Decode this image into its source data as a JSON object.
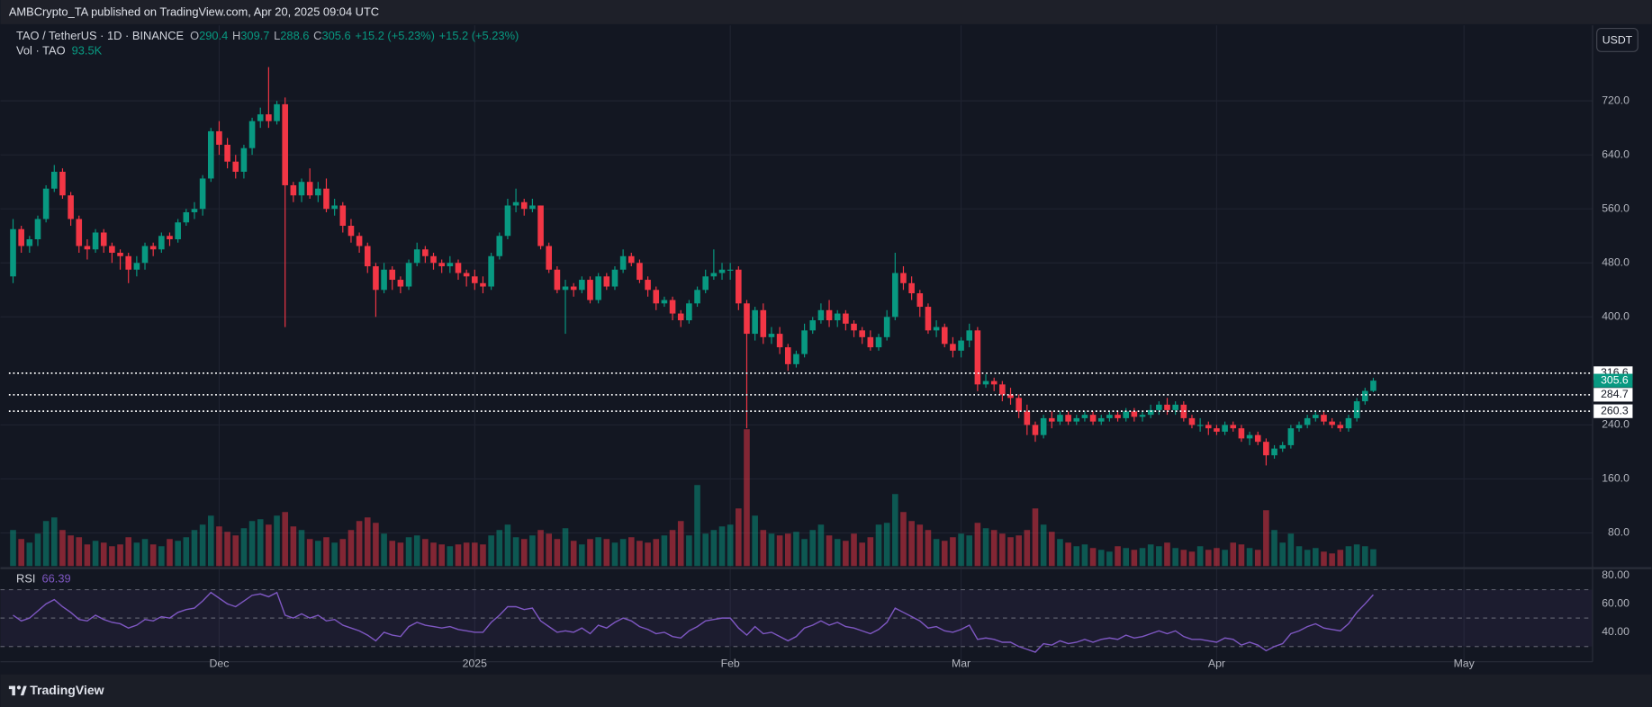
{
  "page": {
    "publisher": "AMBCrypto_TA published on TradingView.com, Apr 20, 2025 09:04 UTC",
    "brand": "TradingView"
  },
  "chart_data": {
    "type": "candlestick",
    "title": "TAO / TetherUS · 1D · BINANCE",
    "ohlc_keys": [
      "O",
      "H",
      "L",
      "C"
    ],
    "change_label": "+15.2 (+5.23%)",
    "currency": "USDT",
    "colors": {
      "up": "#089981",
      "down": "#f23645",
      "rsi": "#7e57c2"
    },
    "grid": true,
    "open": [
      460,
      530,
      505,
      515,
      545,
      590,
      615,
      580,
      545,
      505,
      500,
      525,
      505,
      495,
      490,
      470,
      480,
      505,
      500,
      520,
      515,
      540,
      555,
      560,
      605,
      675,
      655,
      630,
      615,
      650,
      690,
      700,
      690,
      715,
      595,
      580,
      600,
      580,
      590,
      560,
      565,
      535,
      520,
      505,
      475,
      440,
      470,
      455,
      445,
      480,
      500,
      490,
      480,
      475,
      480,
      465,
      460,
      450,
      445,
      490,
      520,
      565,
      570,
      560,
      565,
      505,
      470,
      440,
      445,
      440,
      455,
      425,
      460,
      445,
      470,
      490,
      480,
      455,
      440,
      420,
      425,
      405,
      395,
      420,
      440,
      460,
      465,
      470,
      470,
      420,
      375,
      410,
      370,
      375,
      355,
      330,
      345,
      380,
      395,
      410,
      395,
      405,
      390,
      380,
      370,
      355,
      370,
      400,
      465,
      450,
      435,
      415,
      380,
      385,
      360,
      350,
      365,
      380,
      300,
      305,
      300,
      285,
      280,
      260,
      240,
      225,
      250,
      245,
      255,
      245,
      250,
      255,
      245,
      250,
      255,
      250,
      260,
      252,
      255,
      262,
      270,
      262,
      270,
      250,
      240,
      240,
      235,
      230,
      240,
      235,
      220,
      225,
      215,
      195,
      205,
      210,
      235,
      240,
      250,
      255,
      245,
      240,
      235,
      250,
      275,
      290.4
    ],
    "high": [
      545,
      535,
      520,
      550,
      595,
      625,
      620,
      585,
      550,
      515,
      530,
      530,
      510,
      500,
      495,
      490,
      510,
      510,
      525,
      525,
      545,
      560,
      570,
      610,
      680,
      690,
      665,
      640,
      655,
      695,
      710,
      770,
      720,
      725,
      600,
      605,
      620,
      600,
      605,
      575,
      570,
      545,
      525,
      510,
      480,
      480,
      475,
      460,
      485,
      510,
      505,
      495,
      485,
      490,
      485,
      470,
      470,
      460,
      495,
      525,
      575,
      590,
      575,
      575,
      565,
      510,
      475,
      455,
      450,
      460,
      460,
      465,
      465,
      475,
      500,
      495,
      485,
      460,
      445,
      430,
      430,
      410,
      425,
      445,
      470,
      500,
      480,
      480,
      475,
      425,
      415,
      420,
      385,
      385,
      360,
      350,
      390,
      400,
      420,
      425,
      410,
      410,
      395,
      385,
      380,
      375,
      410,
      495,
      475,
      460,
      440,
      420,
      395,
      390,
      370,
      370,
      390,
      385,
      315,
      310,
      305,
      295,
      285,
      270,
      245,
      255,
      260,
      260,
      260,
      255,
      260,
      260,
      255,
      260,
      260,
      265,
      265,
      260,
      270,
      275,
      280,
      275,
      275,
      255,
      250,
      245,
      240,
      245,
      245,
      240,
      230,
      230,
      220,
      210,
      215,
      240,
      245,
      255,
      260,
      260,
      250,
      245,
      255,
      280,
      295,
      309.7
    ],
    "low": [
      450,
      495,
      495,
      505,
      540,
      585,
      575,
      535,
      495,
      485,
      495,
      495,
      480,
      470,
      450,
      460,
      470,
      490,
      495,
      505,
      510,
      535,
      545,
      550,
      600,
      640,
      620,
      605,
      605,
      640,
      680,
      680,
      685,
      385,
      570,
      570,
      575,
      570,
      555,
      550,
      525,
      510,
      495,
      465,
      400,
      435,
      440,
      435,
      440,
      475,
      480,
      470,
      465,
      465,
      455,
      445,
      440,
      435,
      440,
      485,
      515,
      555,
      550,
      555,
      500,
      465,
      435,
      375,
      430,
      435,
      420,
      420,
      440,
      440,
      465,
      475,
      450,
      430,
      410,
      415,
      395,
      385,
      390,
      415,
      435,
      455,
      455,
      455,
      410,
      235,
      365,
      360,
      360,
      345,
      320,
      325,
      340,
      375,
      390,
      385,
      385,
      380,
      370,
      360,
      350,
      350,
      365,
      395,
      440,
      425,
      400,
      375,
      370,
      355,
      340,
      340,
      355,
      290,
      295,
      290,
      275,
      270,
      250,
      225,
      215,
      220,
      235,
      240,
      240,
      240,
      245,
      240,
      240,
      245,
      245,
      245,
      245,
      245,
      250,
      255,
      255,
      255,
      245,
      235,
      230,
      225,
      225,
      225,
      230,
      215,
      210,
      210,
      180,
      190,
      200,
      205,
      230,
      235,
      245,
      240,
      235,
      230,
      230,
      245,
      270,
      288.6
    ],
    "close": [
      530,
      505,
      515,
      545,
      590,
      615,
      580,
      545,
      505,
      500,
      525,
      505,
      495,
      490,
      470,
      480,
      505,
      500,
      520,
      515,
      540,
      555,
      560,
      605,
      675,
      655,
      630,
      615,
      650,
      690,
      700,
      690,
      715,
      595,
      580,
      600,
      580,
      590,
      560,
      565,
      535,
      520,
      505,
      475,
      440,
      470,
      455,
      445,
      480,
      500,
      490,
      480,
      475,
      480,
      465,
      460,
      450,
      445,
      490,
      520,
      565,
      570,
      560,
      565,
      505,
      470,
      440,
      445,
      440,
      455,
      425,
      460,
      445,
      470,
      490,
      480,
      455,
      440,
      420,
      425,
      405,
      395,
      420,
      440,
      460,
      465,
      470,
      470,
      420,
      375,
      410,
      370,
      375,
      355,
      330,
      345,
      380,
      395,
      410,
      395,
      405,
      390,
      380,
      370,
      355,
      370,
      400,
      465,
      450,
      435,
      415,
      380,
      385,
      360,
      350,
      365,
      380,
      300,
      305,
      300,
      285,
      280,
      260,
      240,
      225,
      250,
      245,
      255,
      245,
      250,
      255,
      245,
      250,
      255,
      250,
      260,
      252,
      255,
      262,
      270,
      262,
      270,
      250,
      240,
      240,
      235,
      230,
      240,
      235,
      220,
      225,
      215,
      195,
      205,
      210,
      235,
      240,
      250,
      255,
      245,
      240,
      235,
      250,
      275,
      290.4,
      305.6
    ],
    "xlim": [
      -1.53,
      191.6
    ],
    "xticks": [
      {
        "value": 25,
        "label": "Dec"
      },
      {
        "value": 56,
        "label": "2025"
      },
      {
        "value": 87,
        "label": "Feb"
      },
      {
        "value": 115,
        "label": "Mar"
      },
      {
        "value": 146,
        "label": "Apr"
      },
      {
        "value": 176,
        "label": "May"
      }
    ],
    "ylim": [
      31,
      832
    ],
    "yticks": [
      {
        "value": 80,
        "label": "80.0"
      },
      {
        "value": 160,
        "label": "160.0"
      },
      {
        "value": 240,
        "label": "240.0"
      },
      {
        "value": 400,
        "label": "400.0"
      },
      {
        "value": 480,
        "label": "480.0"
      },
      {
        "value": 560,
        "label": "560.0"
      },
      {
        "value": 640,
        "label": "640.0"
      },
      {
        "value": 720,
        "label": "720.0"
      }
    ],
    "levels": [
      316.6,
      284.7,
      260.3
    ],
    "volume": {
      "name": "Vol · TAO",
      "last_label": "93.5K",
      "values": [
        200,
        150,
        130,
        180,
        250,
        270,
        200,
        170,
        160,
        120,
        140,
        130,
        110,
        120,
        160,
        130,
        150,
        120,
        110,
        150,
        140,
        160,
        200,
        230,
        280,
        220,
        190,
        170,
        210,
        250,
        260,
        230,
        280,
        300,
        220,
        200,
        150,
        140,
        160,
        130,
        150,
        200,
        250,
        270,
        240,
        180,
        140,
        130,
        160,
        170,
        150,
        130,
        120,
        110,
        120,
        130,
        130,
        120,
        170,
        200,
        230,
        160,
        150,
        170,
        200,
        180,
        150,
        210,
        140,
        120,
        150,
        160,
        150,
        130,
        150,
        160,
        140,
        130,
        150,
        170,
        200,
        250,
        170,
        450,
        180,
        200,
        220,
        230,
        320,
        760,
        280,
        200,
        180,
        170,
        180,
        190,
        150,
        200,
        230,
        170,
        150,
        140,
        180,
        130,
        160,
        230,
        240,
        400,
        300,
        250,
        230,
        200,
        150,
        140,
        160,
        180,
        170,
        240,
        210,
        200,
        180,
        160,
        170,
        200,
        320,
        230,
        190,
        150,
        130,
        110,
        120,
        100,
        90,
        80,
        110,
        100,
        90,
        100,
        120,
        110,
        130,
        100,
        90,
        80,
        110,
        90,
        100,
        90,
        130,
        120,
        100,
        90,
        310,
        200,
        130,
        180,
        110,
        90,
        100,
        80,
        70,
        90,
        110,
        120,
        110,
        93.5
      ]
    },
    "rsi": {
      "name": "RSI",
      "ylim": [
        20,
        84.4
      ],
      "bands": [
        70,
        50,
        30
      ],
      "yticks": [
        {
          "value": 80,
          "label": "80.00"
        },
        {
          "value": 60,
          "label": "60.00"
        },
        {
          "value": 40,
          "label": "40.00"
        }
      ],
      "values": [
        52,
        48,
        50,
        55,
        60,
        63,
        58,
        54,
        49,
        48,
        52,
        49,
        47,
        46,
        43,
        45,
        49,
        48,
        51,
        50,
        54,
        56,
        57,
        62,
        68,
        64,
        60,
        58,
        62,
        66,
        67,
        65,
        68,
        52,
        50,
        53,
        50,
        52,
        48,
        49,
        45,
        43,
        41,
        38,
        34,
        40,
        38,
        37,
        44,
        47,
        45,
        44,
        43,
        44,
        42,
        41,
        40,
        40,
        47,
        52,
        58,
        58,
        56,
        57,
        48,
        44,
        40,
        41,
        40,
        43,
        39,
        45,
        43,
        47,
        50,
        48,
        44,
        42,
        39,
        40,
        37,
        36,
        41,
        44,
        48,
        49,
        50,
        50,
        43,
        38,
        44,
        39,
        40,
        37,
        34,
        37,
        43,
        45,
        48,
        45,
        47,
        44,
        43,
        41,
        39,
        42,
        47,
        57,
        54,
        51,
        48,
        43,
        44,
        41,
        40,
        42,
        45,
        35,
        36,
        35,
        33,
        33,
        30,
        28,
        26,
        32,
        31,
        34,
        32,
        33,
        35,
        33,
        35,
        36,
        35,
        38,
        36,
        37,
        39,
        41,
        39,
        41,
        37,
        35,
        35,
        34,
        33,
        36,
        35,
        31,
        33,
        31,
        27,
        30,
        32,
        39,
        41,
        44,
        46,
        43,
        42,
        41,
        46,
        54,
        60,
        66.39
      ]
    }
  }
}
